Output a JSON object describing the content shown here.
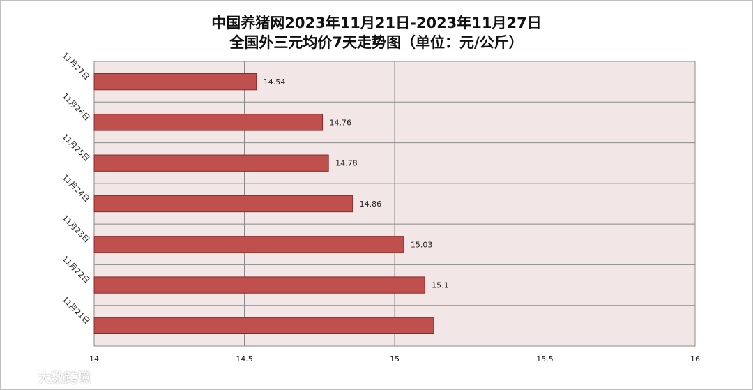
{
  "chart_data": {
    "type": "bar",
    "orientation": "horizontal",
    "title_lines": [
      "中国养猪网2023年11月21日-2023年11月27日",
      "全国外三元均价7天走势图（单位：元/公斤）"
    ],
    "categories": [
      "11月27日",
      "11月26日",
      "11月25日",
      "11月24日",
      "11月23日",
      "11月22日",
      "11月21日"
    ],
    "values": [
      14.54,
      14.76,
      14.78,
      14.86,
      15.03,
      15.1,
      15.13
    ],
    "data_labels": [
      "14.54",
      "14.76",
      "14.78",
      "14.86",
      "15.03",
      "15.1",
      ""
    ],
    "xlim": [
      14,
      16
    ],
    "x_ticks": [
      "14",
      "14.5",
      "15",
      "15.5",
      "16"
    ],
    "grid": true,
    "bar_color": "#c0504d",
    "bar_edge_color": "#8c2a28",
    "plot_background": "#f2e6e6"
  },
  "watermark": {
    "text": "大数跨境"
  }
}
